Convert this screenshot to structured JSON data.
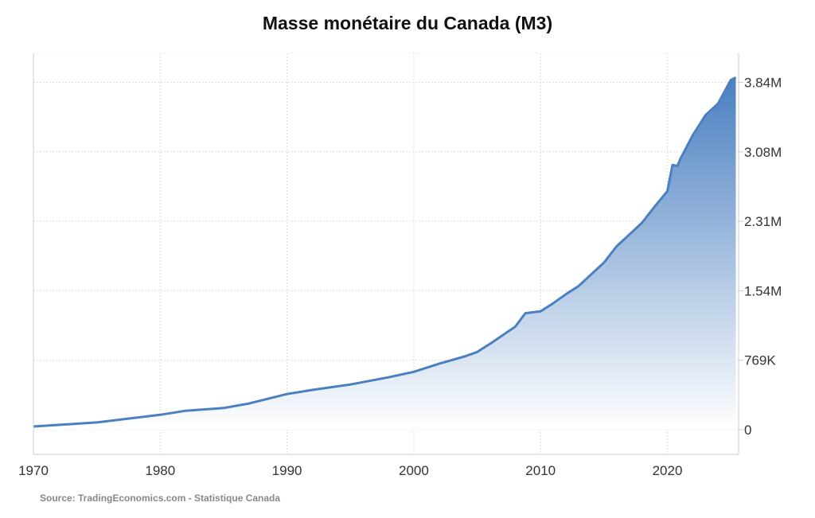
{
  "chart_data": {
    "type": "area",
    "title": "Masse monétaire du Canada (M3)",
    "source": "Source: TradingEconomics.com - Statistique Canada",
    "xlabel": "",
    "ylabel": "",
    "xlim": [
      1970,
      2025.5
    ],
    "ylim": [
      0,
      4020000
    ],
    "x_ticks": [
      1970,
      1980,
      1990,
      2000,
      2010,
      2020
    ],
    "x_tick_labels": [
      "1970",
      "1980",
      "1990",
      "2000",
      "2010",
      "2020"
    ],
    "y_ticks": [
      0,
      769000,
      1538000,
      2307000,
      3076000,
      3845000
    ],
    "y_tick_labels": [
      "0",
      "769K",
      "1.54M",
      "2.31M",
      "3.08M",
      "3.84M"
    ],
    "y_axis_side": "right",
    "grid": true,
    "colors": {
      "line": "#4a7fc1",
      "fill_top": "#4a7fc1",
      "fill_bottom": "#ffffff"
    },
    "x": [
      1970,
      1975,
      1980,
      1982,
      1985,
      1987,
      1990,
      1992,
      1995,
      1998,
      2000,
      2002,
      2004,
      2005,
      2006,
      2008,
      2008.8,
      2010,
      2011,
      2012,
      2013,
      2014,
      2015,
      2016,
      2017,
      2018,
      2019,
      2020.0,
      2020.4,
      2020.8,
      2021,
      2022,
      2023,
      2024,
      2025,
      2025.4
    ],
    "values": [
      35000,
      80000,
      165000,
      210000,
      240000,
      290000,
      395000,
      440000,
      500000,
      580000,
      640000,
      730000,
      810000,
      860000,
      950000,
      1140000,
      1290000,
      1310000,
      1400000,
      1500000,
      1590000,
      1720000,
      1850000,
      2030000,
      2160000,
      2290000,
      2470000,
      2640000,
      2930000,
      2920000,
      2990000,
      3260000,
      3480000,
      3610000,
      3870000,
      3900000
    ]
  }
}
